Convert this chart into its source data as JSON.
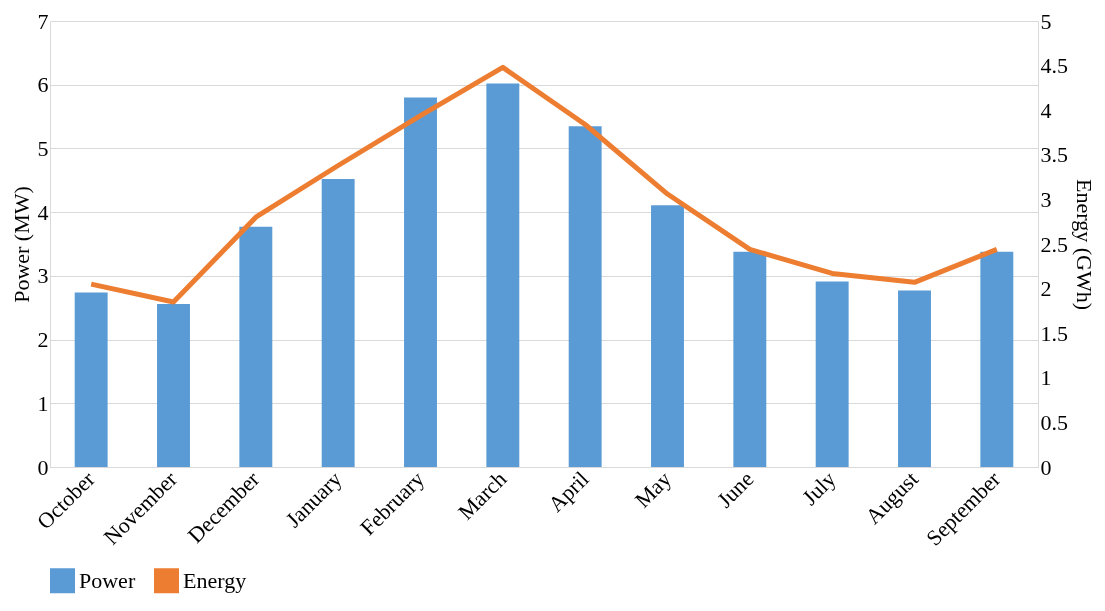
{
  "chart_data": {
    "type": "bar",
    "ylabel": "Power (MW)",
    "y2label": "Energy (GWh)",
    "categories": [
      "October",
      "November",
      "December",
      "January",
      "February",
      "March",
      "April",
      "May",
      "June",
      "July",
      "August",
      "September"
    ],
    "series": [
      {
        "name": "Power",
        "color": "#5b9bd5",
        "values": [
          2.74,
          2.56,
          3.77,
          4.52,
          5.8,
          6.02,
          5.35,
          4.11,
          3.38,
          2.91,
          2.77,
          3.38
        ]
      },
      {
        "name": "Energy",
        "type": "line",
        "axis": "y2",
        "color": "#ed7d31",
        "values": [
          2.05,
          1.85,
          2.8,
          3.38,
          3.94,
          4.48,
          3.84,
          3.06,
          2.44,
          2.17,
          2.07,
          2.44
        ]
      }
    ],
    "ylim": [
      0,
      7
    ],
    "yticks": [
      0,
      1,
      2,
      3,
      4,
      5,
      6,
      7
    ],
    "y2lim": [
      0,
      5
    ],
    "y2ticks": [
      0,
      0.5,
      1,
      1.5,
      2,
      2.5,
      3,
      3.5,
      4,
      4.5,
      5
    ],
    "grid": "y",
    "legend": "bottom"
  }
}
